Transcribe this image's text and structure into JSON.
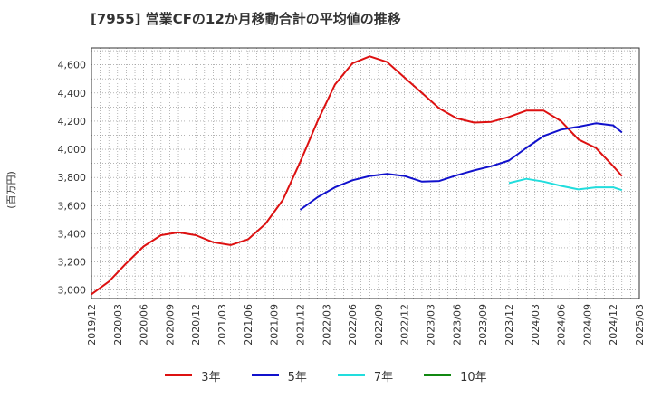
{
  "chart_data": {
    "type": "line",
    "title": "[7955]  営業CFの12か月移動合計の平均値の推移",
    "ylabel": "(百万円)",
    "ylim": [
      2940,
      4720
    ],
    "yticks": [
      3000,
      3200,
      3400,
      3600,
      3800,
      4000,
      4200,
      4400,
      4600
    ],
    "ytick_labels": [
      "3,000",
      "3,200",
      "3,400",
      "3,600",
      "3,800",
      "4,000",
      "4,200",
      "4,400",
      "4,600"
    ],
    "xlim": [
      "2019/12",
      "2025/03"
    ],
    "xticks": [
      "2019/12",
      "2020/03",
      "2020/06",
      "2020/09",
      "2020/12",
      "2021/03",
      "2021/06",
      "2021/09",
      "2021/12",
      "2022/03",
      "2022/06",
      "2022/09",
      "2022/12",
      "2023/03",
      "2023/06",
      "2023/09",
      "2023/12",
      "2024/03",
      "2024/06",
      "2024/09",
      "2024/12",
      "2025/03"
    ],
    "grid": true,
    "legend": "bottom",
    "series": [
      {
        "name": "3年",
        "color": "#dd1111",
        "points": [
          [
            "2019/12",
            2970
          ],
          [
            "2020/02",
            3060
          ],
          [
            "2020/04",
            3190
          ],
          [
            "2020/06",
            3310
          ],
          [
            "2020/08",
            3390
          ],
          [
            "2020/10",
            3410
          ],
          [
            "2020/12",
            3390
          ],
          [
            "2021/02",
            3340
          ],
          [
            "2021/04",
            3320
          ],
          [
            "2021/06",
            3360
          ],
          [
            "2021/08",
            3470
          ],
          [
            "2021/10",
            3640
          ],
          [
            "2021/12",
            3910
          ],
          [
            "2022/02",
            4200
          ],
          [
            "2022/04",
            4460
          ],
          [
            "2022/06",
            4610
          ],
          [
            "2022/08",
            4660
          ],
          [
            "2022/10",
            4620
          ],
          [
            "2022/12",
            4510
          ],
          [
            "2023/02",
            4400
          ],
          [
            "2023/04",
            4290
          ],
          [
            "2023/06",
            4220
          ],
          [
            "2023/08",
            4190
          ],
          [
            "2023/10",
            4195
          ],
          [
            "2023/12",
            4230
          ],
          [
            "2024/02",
            4275
          ],
          [
            "2024/04",
            4275
          ],
          [
            "2024/06",
            4200
          ],
          [
            "2024/08",
            4070
          ],
          [
            "2024/10",
            4010
          ],
          [
            "2024/12",
            3880
          ],
          [
            "2025/01",
            3810
          ]
        ]
      },
      {
        "name": "5年",
        "color": "#1111cc",
        "points": [
          [
            "2021/12",
            3570
          ],
          [
            "2022/02",
            3660
          ],
          [
            "2022/04",
            3730
          ],
          [
            "2022/06",
            3780
          ],
          [
            "2022/08",
            3810
          ],
          [
            "2022/10",
            3825
          ],
          [
            "2022/12",
            3810
          ],
          [
            "2023/02",
            3770
          ],
          [
            "2023/04",
            3775
          ],
          [
            "2023/06",
            3815
          ],
          [
            "2023/08",
            3850
          ],
          [
            "2023/10",
            3880
          ],
          [
            "2023/12",
            3920
          ],
          [
            "2024/02",
            4010
          ],
          [
            "2024/04",
            4095
          ],
          [
            "2024/06",
            4140
          ],
          [
            "2024/08",
            4160
          ],
          [
            "2024/10",
            4185
          ],
          [
            "2024/12",
            4170
          ],
          [
            "2025/01",
            4120
          ]
        ]
      },
      {
        "name": "7年",
        "color": "#22dddd",
        "points": [
          [
            "2023/12",
            3760
          ],
          [
            "2024/02",
            3790
          ],
          [
            "2024/04",
            3770
          ],
          [
            "2024/06",
            3740
          ],
          [
            "2024/08",
            3715
          ],
          [
            "2024/10",
            3730
          ],
          [
            "2024/12",
            3730
          ],
          [
            "2025/01",
            3710
          ]
        ]
      },
      {
        "name": "10年",
        "color": "#118811",
        "points": []
      }
    ]
  }
}
